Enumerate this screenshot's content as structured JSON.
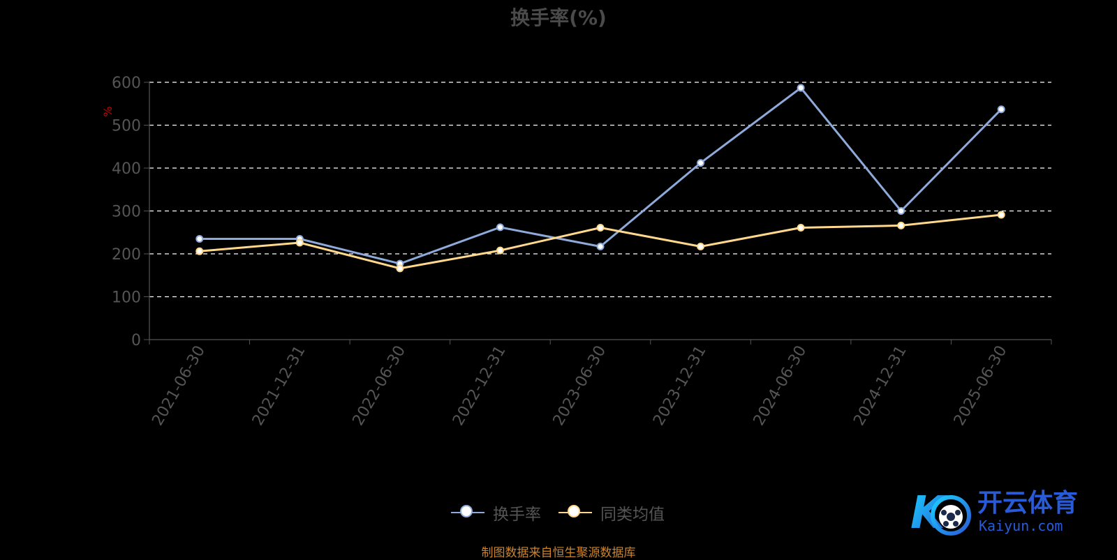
{
  "title": "换手率(%)",
  "source_note": "制图数据来自恒生聚源数据库",
  "watermark": {
    "cn": "开云体育",
    "en": "Kaiyun.com"
  },
  "colors": {
    "background": "#000000",
    "series_1": "#8eaadb",
    "series_2": "#ffd88c",
    "axis": "#555555",
    "grid": "#ffffff",
    "unit": "#cc0000",
    "source": "#c9842e"
  },
  "chart_data": {
    "type": "line",
    "title": "换手率(%)",
    "ylabel": "%",
    "ylim": [
      0,
      600
    ],
    "yticks": [
      0,
      100,
      200,
      300,
      400,
      500,
      600
    ],
    "grid": true,
    "legend_position": "bottom-center",
    "categories": [
      "2021-06-30",
      "2021-12-31",
      "2022-06-30",
      "2022-12-31",
      "2023-06-30",
      "2023-12-31",
      "2024-06-30",
      "2024-12-31",
      "2025-06-30"
    ],
    "series": [
      {
        "name": "换手率",
        "color": "#8eaadb",
        "values": [
          235,
          235,
          177,
          262,
          217,
          412,
          587,
          300,
          537
        ]
      },
      {
        "name": "同类均值",
        "color": "#ffd88c",
        "values": [
          206,
          226,
          166,
          208,
          261,
          217,
          261,
          266,
          291
        ]
      }
    ]
  }
}
